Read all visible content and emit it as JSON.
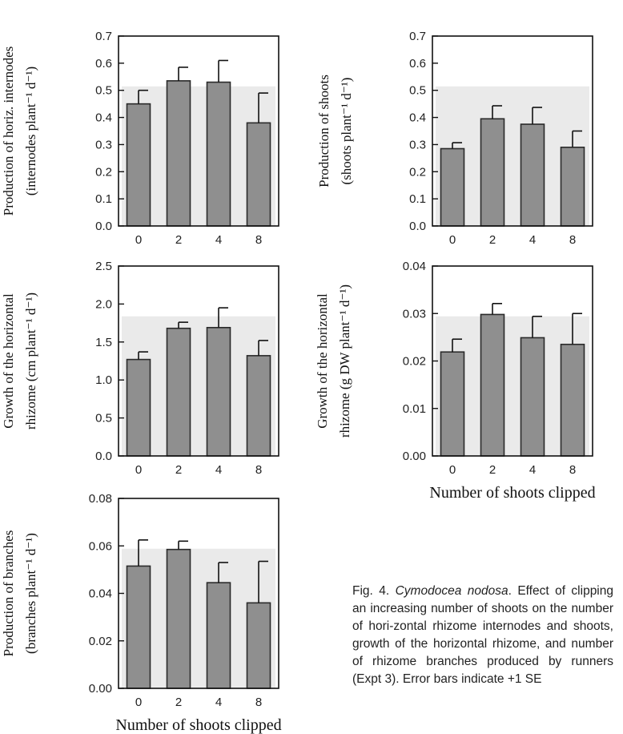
{
  "chart_data": [
    {
      "type": "bar",
      "ylabel": [
        "Production of horiz. internodes",
        "(internodes plant⁻¹ d⁻¹)"
      ],
      "xlabel": "",
      "categories": [
        "0",
        "2",
        "4",
        "8"
      ],
      "values": [
        0.45,
        0.535,
        0.53,
        0.38
      ],
      "errors": [
        0.05,
        0.05,
        0.08,
        0.11
      ],
      "ylim": [
        0,
        0.7
      ],
      "yticks": [
        "0.0",
        "0.1",
        "0.2",
        "0.3",
        "0.4",
        "0.5",
        "0.6",
        "0.7"
      ],
      "grid": false
    },
    {
      "type": "bar",
      "ylabel": [
        "Production of shoots",
        "(shoots plant⁻¹ d⁻¹)"
      ],
      "xlabel": "",
      "categories": [
        "0",
        "2",
        "4",
        "8"
      ],
      "values": [
        0.285,
        0.395,
        0.375,
        0.29
      ],
      "errors": [
        0.022,
        0.048,
        0.062,
        0.06
      ],
      "ylim": [
        0,
        0.7
      ],
      "yticks": [
        "0.0",
        "0.1",
        "0.2",
        "0.3",
        "0.4",
        "0.5",
        "0.6",
        "0.7"
      ],
      "grid": false
    },
    {
      "type": "bar",
      "ylabel": [
        "Growth of the horizontal",
        "rhizome (cm plant⁻¹ d⁻¹)"
      ],
      "xlabel": "",
      "categories": [
        "0",
        "2",
        "4",
        "8"
      ],
      "values": [
        1.27,
        1.68,
        1.69,
        1.32
      ],
      "errors": [
        0.1,
        0.08,
        0.26,
        0.2
      ],
      "ylim": [
        0,
        2.5
      ],
      "yticks": [
        "0.0",
        "0.5",
        "1.0",
        "1.5",
        "2.0",
        "2.5"
      ],
      "grid": false
    },
    {
      "type": "bar",
      "ylabel": [
        "Growth of  the horizontal",
        "rhizome (g DW plant⁻¹ d⁻¹)"
      ],
      "xlabel": "Number of shoots clipped",
      "categories": [
        "0",
        "2",
        "4",
        "8"
      ],
      "values": [
        0.0219,
        0.0298,
        0.0249,
        0.0235
      ],
      "errors": [
        0.0027,
        0.0023,
        0.0045,
        0.0065
      ],
      "ylim": [
        0,
        0.04
      ],
      "yticks": [
        "0.00",
        "0.01",
        "0.02",
        "0.03",
        "0.04"
      ],
      "grid": false
    },
    {
      "type": "bar",
      "ylabel": [
        "Production of branches",
        "(branches plant⁻¹ d⁻¹)"
      ],
      "xlabel": "Number of shoots clipped",
      "categories": [
        "0",
        "2",
        "4",
        "8"
      ],
      "values": [
        0.0515,
        0.0585,
        0.0445,
        0.036
      ],
      "errors": [
        0.011,
        0.0035,
        0.0085,
        0.0175
      ],
      "ylim": [
        0,
        0.08
      ],
      "yticks": [
        "0.00",
        "0.02",
        "0.04",
        "0.06",
        "0.08"
      ],
      "grid": false
    }
  ],
  "caption": {
    "prefix": "Fig. 4. ",
    "species": "Cymodocea nodosa",
    "text": ". Effect of clipping an increasing number of shoots on the number of hori-zontal rhizome internodes and shoots, growth of the horizontal rhizome, and number of rhizome branches produced by runners (Expt 3). Error bars indicate +1 SE"
  },
  "colors": {
    "bar_fill": "#8f8f8f",
    "bar_stroke": "#2a2a2a",
    "axis": "#111111",
    "panel_bg": "#d9d9d9"
  }
}
